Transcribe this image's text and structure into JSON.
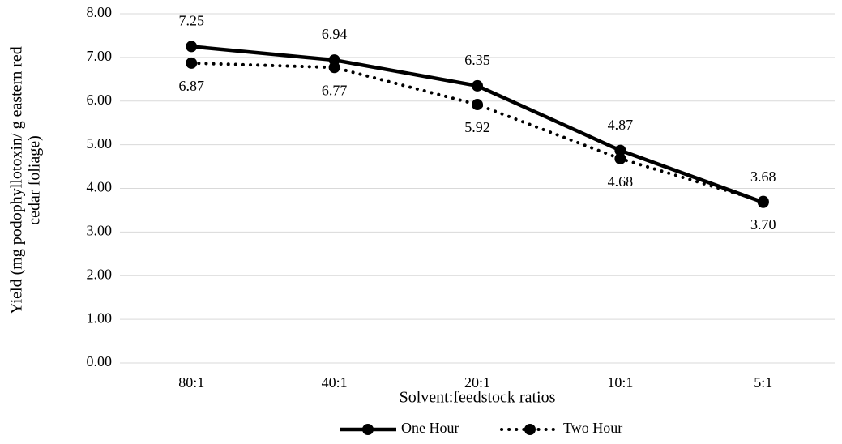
{
  "chart_data": {
    "type": "line",
    "y_label": [
      "Yield (mg podophyllotoxin/ g eastern red",
      "cedar foliage)"
    ],
    "x_label": "Solvent:feedstock ratios",
    "categories": [
      "80:1",
      "40:1",
      "20:1",
      "10:1",
      "5:1"
    ],
    "series": [
      {
        "name": "One Hour",
        "color": "#000000",
        "style": "solid",
        "values": [
          7.25,
          6.94,
          6.35,
          4.87,
          3.68
        ]
      },
      {
        "name": "Two Hour",
        "color": "#000000",
        "style": "dotted",
        "values": [
          6.87,
          6.77,
          5.92,
          4.68,
          3.7
        ],
        "value_labels": [
          "6.87",
          "6.77",
          "5.92",
          "4.68",
          "3.70"
        ]
      }
    ],
    "ylim": [
      0,
      8
    ],
    "yticks": [
      {
        "value": 0,
        "label": "0.00"
      },
      {
        "value": 1,
        "label": "1.00"
      },
      {
        "value": 2,
        "label": "2.00"
      },
      {
        "value": 3,
        "label": "3.00"
      },
      {
        "value": 4,
        "label": "4.00"
      },
      {
        "value": 5,
        "label": "5.00"
      },
      {
        "value": 6,
        "label": "6.00"
      },
      {
        "value": 7,
        "label": "7.00"
      },
      {
        "value": 8,
        "label": "8.00"
      }
    ],
    "grid": true,
    "legend": "bottom"
  }
}
